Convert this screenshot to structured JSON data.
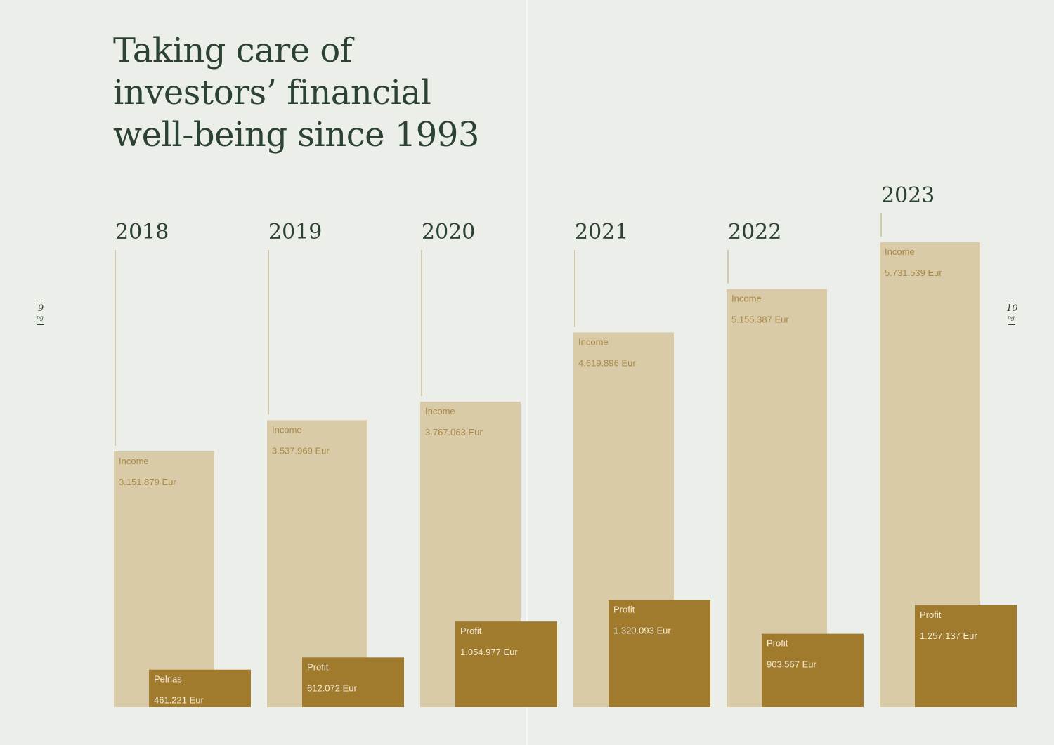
{
  "page": {
    "title_lines": [
      "Taking care of",
      "investors’ financial",
      "well-being since 1993"
    ],
    "page_left": {
      "num": "9",
      "unit": "pg."
    },
    "page_right": {
      "num": "10",
      "unit": "pg."
    }
  },
  "colors": {
    "background": "#eceee9",
    "title": "#2c4334",
    "income_bar": "#d9caa8",
    "profit_bar": "#a07b2d",
    "income_text": "#a98a47",
    "profit_text": "#f4ead3",
    "guide_line": "#b9a672"
  },
  "chart_data": {
    "type": "bar",
    "categories": [
      "2018",
      "2019",
      "2020",
      "2021",
      "2022",
      "2023"
    ],
    "series": [
      {
        "key": "income",
        "values": [
          3151879,
          3537969,
          3767063,
          4619896,
          5155387,
          5731539
        ],
        "labels": [
          "Income",
          "Income",
          "Income",
          "Income",
          "Income",
          "Income"
        ],
        "value_labels": [
          "3.151.879 Eur",
          "3.537.969 Eur",
          "3.767.063 Eur",
          "4.619.896 Eur",
          "5.155.387 Eur",
          "5.731.539 Eur"
        ]
      },
      {
        "key": "profit",
        "values": [
          461221,
          612072,
          1054977,
          1320093,
          903567,
          1257137
        ],
        "labels": [
          "Pelnas",
          "Profit",
          "Profit",
          "Profit",
          "Profit",
          "Profit"
        ],
        "value_labels": [
          "461.221 Eur",
          "612.072 Eur",
          "1.054.977 Eur",
          "1.320.093 Eur",
          "903.567 Eur",
          "1.257.137 Eur"
        ]
      }
    ],
    "unit": "Eur",
    "grid": false,
    "legend": "none"
  }
}
